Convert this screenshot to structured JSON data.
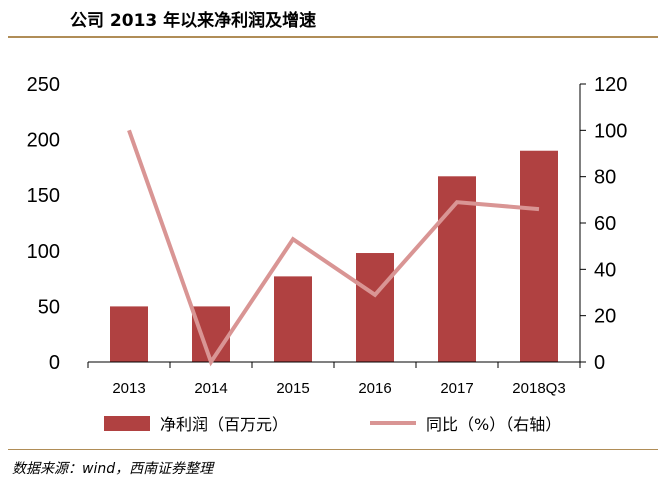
{
  "title": "公司 2013 年以来净利润及增速",
  "source": "数据来源：wind，西南证券整理",
  "chart_data": {
    "type": "bar+line",
    "categories": [
      "2013",
      "2014",
      "2015",
      "2016",
      "2017",
      "2018Q3"
    ],
    "series": [
      {
        "name": "净利润（百万元）",
        "type": "bar",
        "axis": "left",
        "color": "#b04141",
        "values": [
          50,
          50,
          77,
          98,
          167,
          190
        ]
      },
      {
        "name": "同比（%）（右轴）",
        "type": "line",
        "axis": "right",
        "color": "#d99594",
        "values": [
          100,
          0,
          53,
          29,
          69,
          66
        ]
      }
    ],
    "y_left": {
      "min": 0,
      "max": 250,
      "ticks": [
        0,
        50,
        100,
        150,
        200,
        250
      ]
    },
    "y_right": {
      "min": 0,
      "max": 120,
      "ticks": [
        0,
        20,
        40,
        60,
        80,
        100,
        120
      ]
    },
    "legend_position": "bottom",
    "grid": false
  }
}
